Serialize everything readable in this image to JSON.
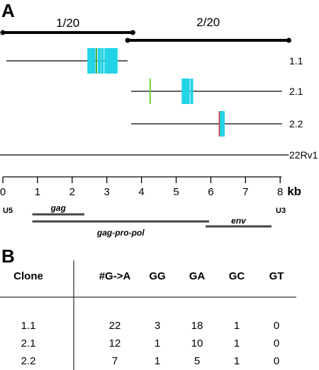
{
  "panel_a": {
    "label": "A",
    "segments": [
      {
        "label": "1/20",
        "start_kb": 0,
        "end_kb": 3.75
      },
      {
        "label": "2/20",
        "start_kb": 3.6,
        "end_kb": 8.25
      }
    ],
    "clones": [
      {
        "name": "1.1",
        "start_kb": 0.1,
        "end_kb": 3.6,
        "marks": [
          {
            "kb": 2.48,
            "color": "#22d3e6"
          },
          {
            "kb": 2.56,
            "color": "#22d3e6"
          },
          {
            "kb": 2.63,
            "color": "#22d3e6"
          },
          {
            "kb": 2.7,
            "color": "#3fae3f"
          },
          {
            "kb": 2.78,
            "color": "#22d3e6"
          },
          {
            "kb": 2.87,
            "color": "#22d3e6"
          },
          {
            "kb": 2.97,
            "color": "#22d3e6"
          },
          {
            "kb": 3.05,
            "color": "#22d3e6"
          },
          {
            "kb": 3.12,
            "color": "#22d3e6"
          },
          {
            "kb": 3.2,
            "color": "#22d3e6"
          },
          {
            "kb": 3.27,
            "color": "#22d3e6"
          }
        ]
      },
      {
        "name": "2.1",
        "start_kb": 3.7,
        "end_kb": 8.05,
        "marks": [
          {
            "kb": 4.25,
            "color": "#6fd23c"
          },
          {
            "kb": 5.2,
            "color": "#22d3e6"
          },
          {
            "kb": 5.27,
            "color": "#22d3e6"
          },
          {
            "kb": 5.35,
            "color": "#22d3e6"
          },
          {
            "kb": 5.45,
            "color": "#22d3e6"
          }
        ]
      },
      {
        "name": "2.2",
        "start_kb": 3.7,
        "end_kb": 8.05,
        "marks": [
          {
            "kb": 6.25,
            "color": "#d9262c"
          },
          {
            "kb": 6.3,
            "color": "#22d3e6"
          },
          {
            "kb": 6.36,
            "color": "#22d3e6"
          }
        ]
      },
      {
        "name": "22Rv1",
        "start_kb": -0.1,
        "end_kb": 8.25,
        "marks": []
      }
    ],
    "axis": {
      "min": 0,
      "max": 8,
      "unit": "kb",
      "ticks": [
        "0",
        "1",
        "2",
        "3",
        "4",
        "5",
        "6",
        "7",
        "8"
      ]
    },
    "ltr_left": "U5",
    "ltr_right": "U3",
    "genes": [
      {
        "label": "gag",
        "start_kb": 0.85,
        "end_kb": 2.35
      },
      {
        "label": "gag-pro-pol",
        "start_kb": 0.85,
        "end_kb": 5.95
      },
      {
        "label": "env",
        "start_kb": 5.85,
        "end_kb": 7.75
      }
    ]
  },
  "panel_b": {
    "label": "B",
    "headers": [
      "Clone",
      "#G->A",
      "GG",
      "GA",
      "GC",
      "GT"
    ],
    "rows": [
      [
        "1.1",
        "22",
        "3",
        "18",
        "1",
        "0"
      ],
      [
        "2.1",
        "12",
        "1",
        "10",
        "1",
        "0"
      ],
      [
        "2.2",
        "7",
        "1",
        "5",
        "1",
        "0"
      ]
    ]
  }
}
